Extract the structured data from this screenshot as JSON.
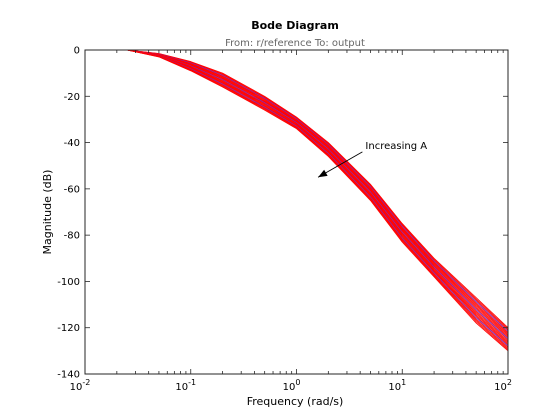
{
  "chart_data": {
    "type": "line",
    "title": "Bode Diagram",
    "subtitle": "From: r/reference  To: output",
    "xlabel": "Frequency  (rad/s)",
    "ylabel": "Magnitude (dB)",
    "xscale": "log",
    "xlim": [
      0.01,
      100
    ],
    "ylim": [
      -140,
      0
    ],
    "x_ticks": [
      {
        "value": 0.01,
        "base": "10",
        "exp": "-2"
      },
      {
        "value": 0.1,
        "base": "10",
        "exp": "-1"
      },
      {
        "value": 1,
        "base": "10",
        "exp": "0"
      },
      {
        "value": 10,
        "base": "10",
        "exp": "1"
      },
      {
        "value": 100,
        "base": "10",
        "exp": "2"
      }
    ],
    "y_ticks": [
      0,
      -20,
      -40,
      -60,
      -80,
      -100,
      -120,
      -140
    ],
    "grid": false,
    "annotation": {
      "text": "Increasing A",
      "from": {
        "x": 4.2,
        "y": -44
      },
      "to": {
        "x": 1.6,
        "y": -55
      }
    },
    "series_family": {
      "count": 20,
      "colors": [
        "#ff0000",
        "#6a2bd6"
      ],
      "frequencies_rad_s": [
        0.01,
        0.025,
        0.05,
        0.1,
        0.2,
        0.5,
        1,
        2,
        5,
        10,
        20,
        50,
        100
      ],
      "magnitude_dB_upper_curve": [
        0,
        0,
        -1.5,
        -5,
        -10,
        -20,
        -29,
        -40,
        -58,
        -75,
        -90,
        -107,
        -120
      ],
      "magnitude_dB_lower_curve": [
        0,
        0,
        -3,
        -9,
        -16,
        -26,
        -34,
        -46,
        -65,
        -83,
        -98,
        -118,
        -130
      ]
    }
  }
}
